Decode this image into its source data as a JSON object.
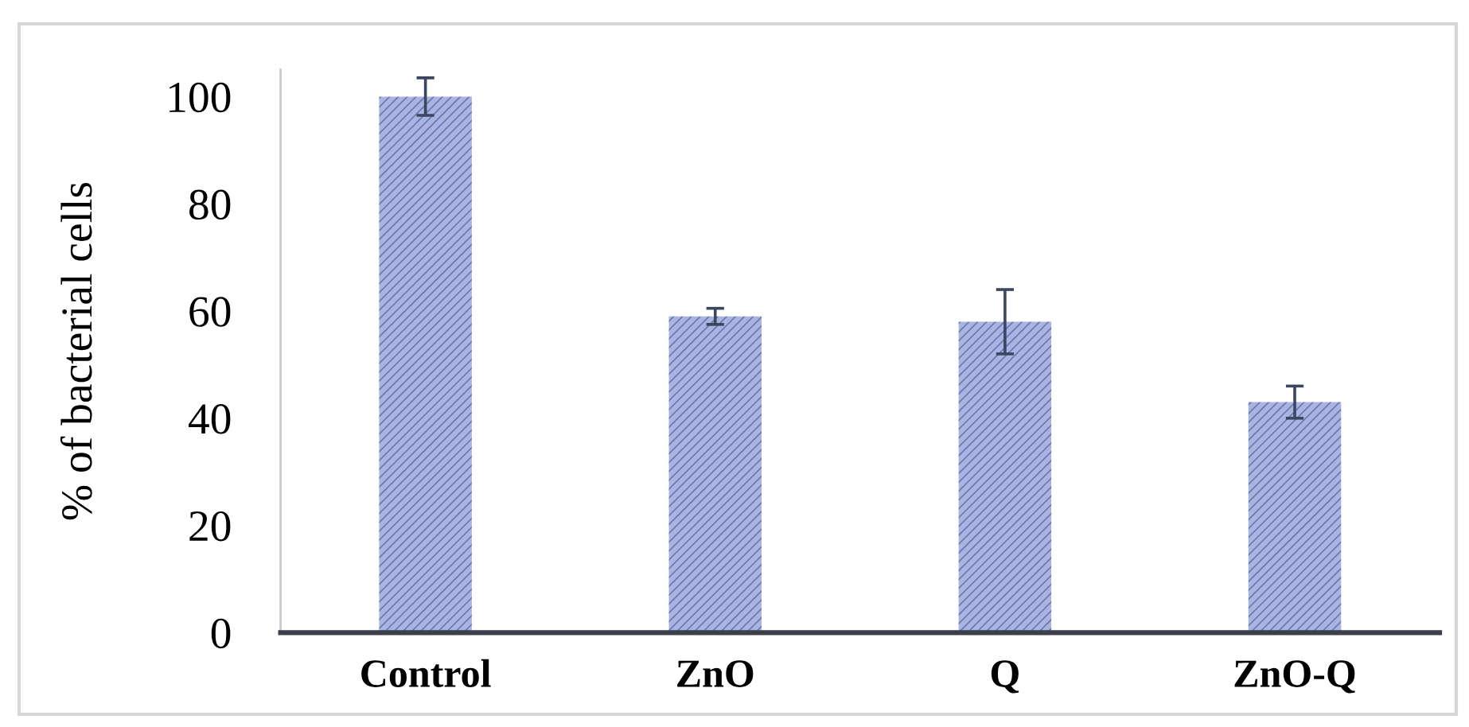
{
  "chart_data": {
    "type": "bar",
    "ylabel": "% of bacterial cells",
    "categories": [
      "Control",
      "ZnO",
      "Q",
      "ZnO-Q"
    ],
    "values": [
      100,
      59,
      58,
      43
    ],
    "errors": [
      3.5,
      1.5,
      6,
      3
    ],
    "color": "#a9b4e0",
    "ylim": [
      0,
      105
    ],
    "yticks": [
      0,
      20,
      40,
      60,
      80,
      100
    ]
  }
}
